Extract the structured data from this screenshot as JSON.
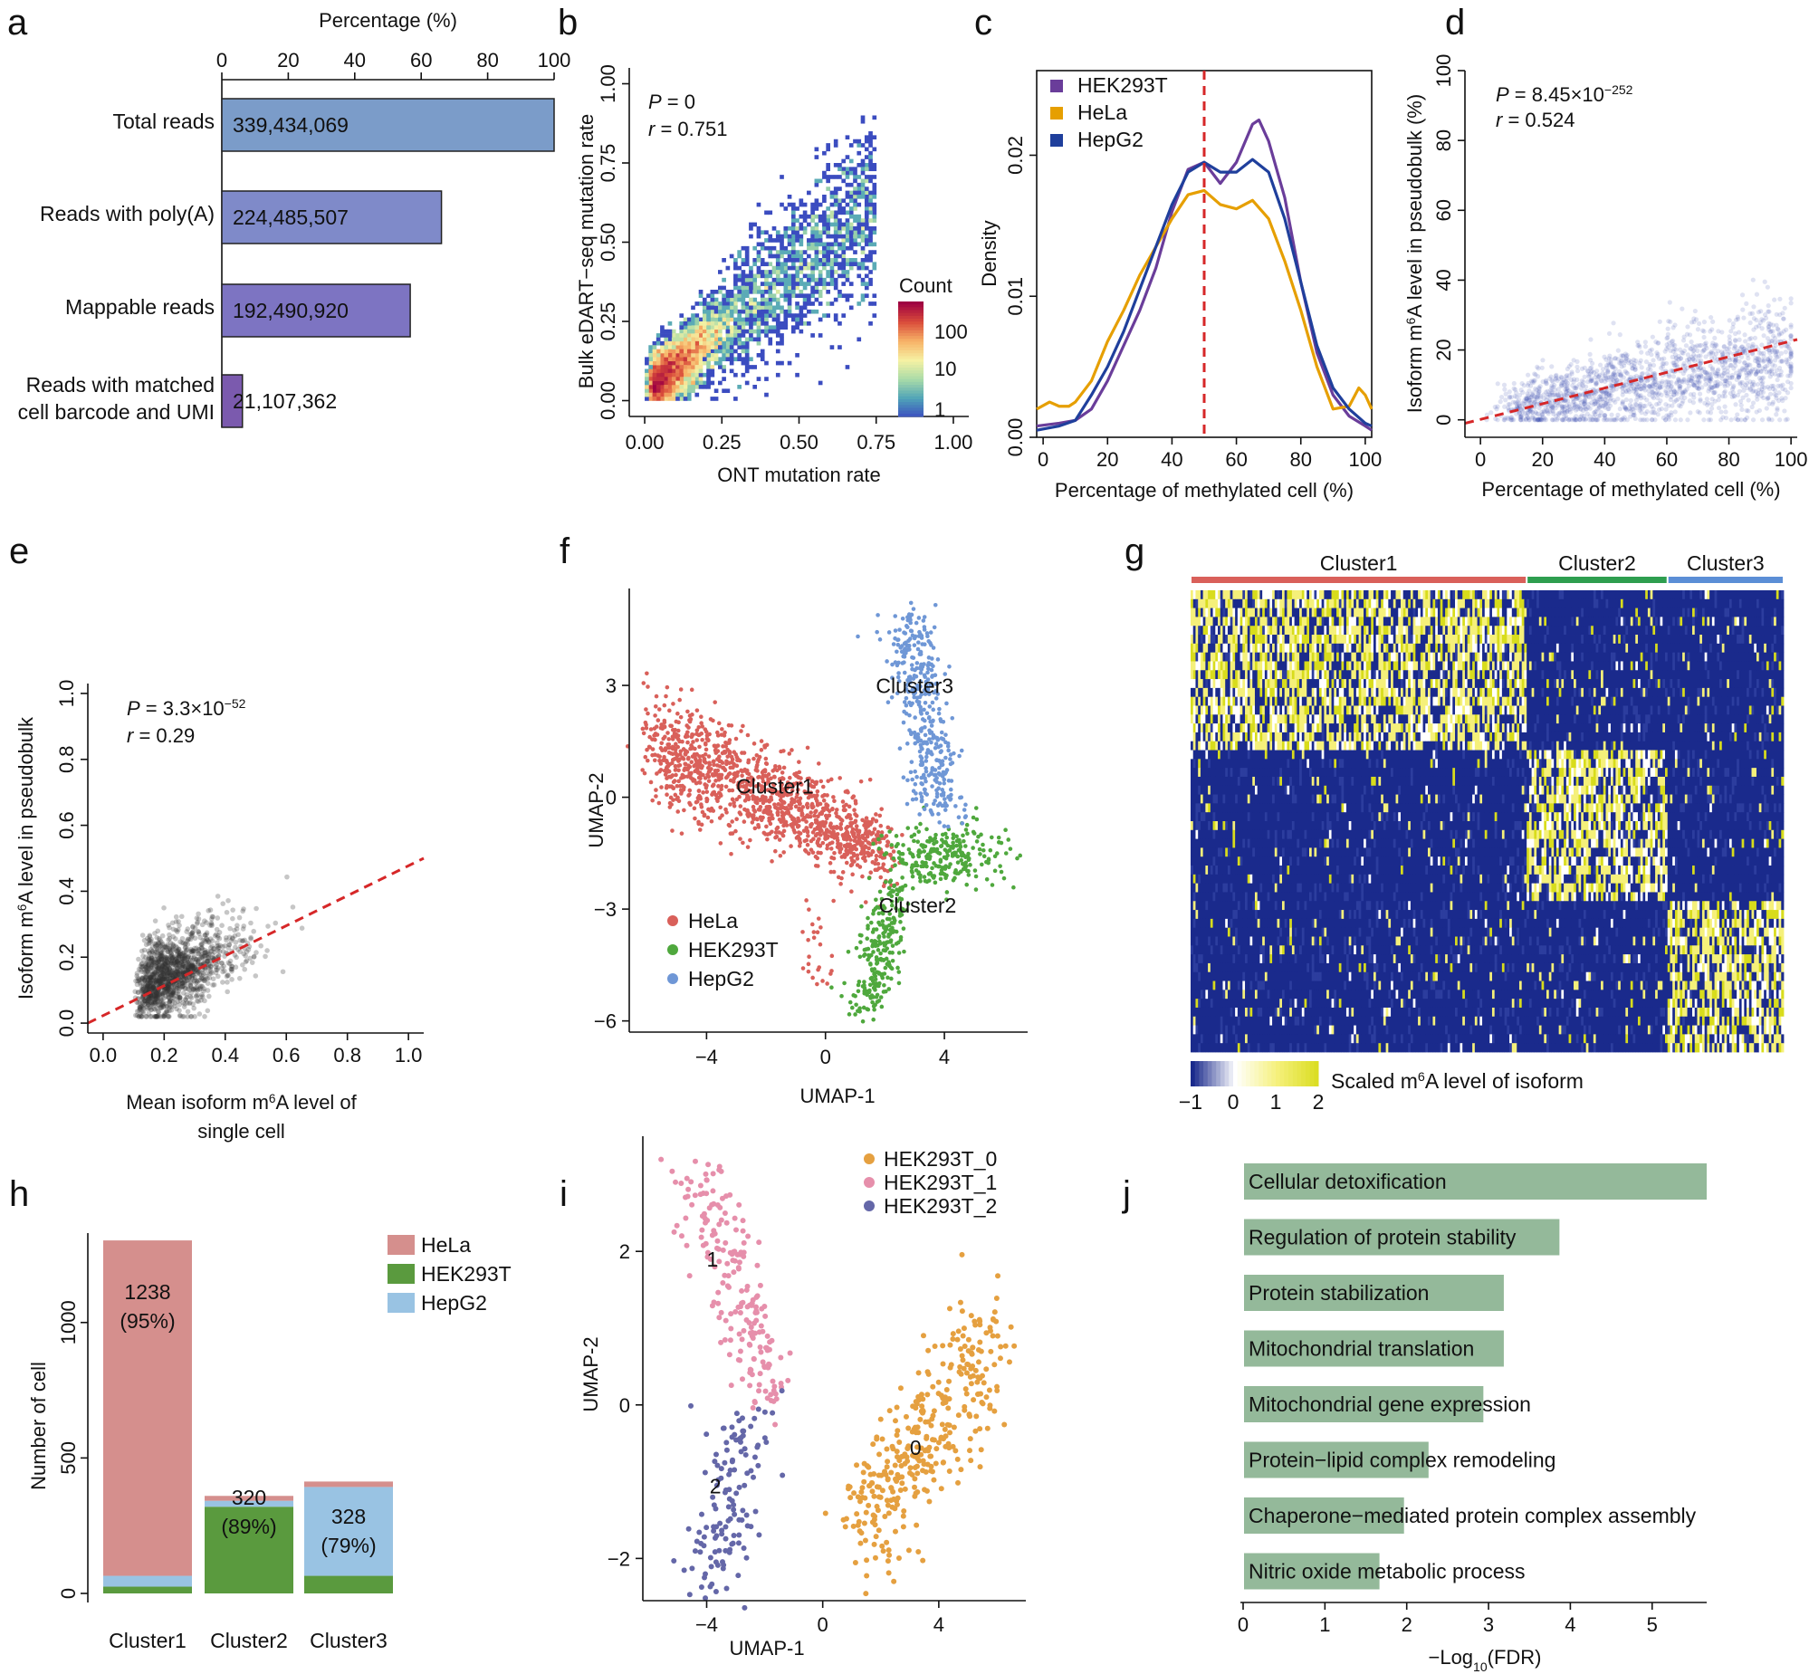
{
  "panel_labels": [
    "a",
    "b",
    "c",
    "d",
    "e",
    "f",
    "g",
    "h",
    "i",
    "j"
  ],
  "chart_data": [
    {
      "panel": "a",
      "type": "bar",
      "orientation": "horizontal",
      "title": "Percentage (%)",
      "xticks": [
        "0",
        "20",
        "40",
        "60",
        "80",
        "100"
      ],
      "xlim": [
        0,
        100
      ],
      "categories": [
        "Total reads",
        "Reads with poly(A)",
        "Mappable reads",
        "Reads with matched cell barcode and UMI"
      ],
      "category_lines": [
        [
          "Total reads"
        ],
        [
          "Reads with poly(A)"
        ],
        [
          "Mappable reads"
        ],
        [
          "Reads with matched",
          "cell barcode and UMI"
        ]
      ],
      "values": [
        100,
        66.1,
        56.7,
        6.2
      ],
      "labels": [
        "339,434,069",
        "224,485,507",
        "192,490,920",
        "21,107,362"
      ],
      "colors": [
        "#7b9cc9",
        "#7f8ac9",
        "#7d74c2",
        "#7b5aae"
      ]
    },
    {
      "panel": "b",
      "type": "heatmap",
      "subtype": "2d-density",
      "xlabel": "ONT mutation rate",
      "ylabel": "Bulk eDART−seq mutation rate",
      "xticks": [
        "0.00",
        "0.25",
        "0.50",
        "0.75",
        "1.00"
      ],
      "yticks": [
        "0.00",
        "0.25",
        "0.50",
        "0.75",
        "1.00"
      ],
      "xlim": [
        0,
        1
      ],
      "ylim": [
        0,
        1
      ],
      "stat_p": "0",
      "stat_r": "0.751",
      "legend_title": "Count",
      "legend_ticks": [
        "100",
        "10",
        "1"
      ],
      "colormap": [
        "#3b4cc0",
        "#4fa3b8",
        "#a9dba8",
        "#f6f1a3",
        "#f7b267",
        "#d94b3a",
        "#9e0142"
      ]
    },
    {
      "panel": "c",
      "type": "line",
      "subtype": "density",
      "xlabel": "Percentage of methylated cell (%)",
      "ylabel": "Density",
      "xticks": [
        "0",
        "20",
        "40",
        "60",
        "80",
        "100"
      ],
      "yticks": [
        "0.00",
        "0.01",
        "0.02"
      ],
      "xlim": [
        -2,
        102
      ],
      "ylim": [
        0,
        0.026
      ],
      "vline": 50,
      "vline_color": "#d62728",
      "series": [
        {
          "name": "HEK293T",
          "color": "#6a3d9a",
          "x": [
            -2,
            5,
            10,
            15,
            20,
            25,
            30,
            35,
            40,
            45,
            50,
            55,
            60,
            65,
            67,
            70,
            75,
            80,
            85,
            90,
            95,
            100,
            102
          ],
          "y": [
            0.0008,
            0.001,
            0.0012,
            0.002,
            0.004,
            0.0065,
            0.009,
            0.012,
            0.016,
            0.019,
            0.0195,
            0.018,
            0.0195,
            0.0222,
            0.0225,
            0.021,
            0.017,
            0.011,
            0.006,
            0.003,
            0.0015,
            0.0008,
            0.0005
          ]
        },
        {
          "name": "HeLa",
          "color": "#e69f00",
          "x": [
            -2,
            2,
            5,
            8,
            10,
            15,
            20,
            25,
            30,
            35,
            40,
            45,
            50,
            55,
            60,
            65,
            70,
            75,
            80,
            85,
            90,
            95,
            98,
            100,
            102
          ],
          "y": [
            0.002,
            0.0025,
            0.0022,
            0.0022,
            0.0025,
            0.004,
            0.0068,
            0.009,
            0.0115,
            0.0135,
            0.0155,
            0.0172,
            0.0175,
            0.0165,
            0.0162,
            0.0168,
            0.0155,
            0.0125,
            0.009,
            0.005,
            0.002,
            0.0022,
            0.0035,
            0.003,
            0.002
          ]
        },
        {
          "name": "HepG2",
          "color": "#1f3f9c",
          "x": [
            -2,
            5,
            10,
            15,
            20,
            25,
            30,
            35,
            40,
            45,
            50,
            55,
            60,
            65,
            70,
            75,
            80,
            85,
            90,
            95,
            100,
            102
          ],
          "y": [
            0.0005,
            0.0008,
            0.0012,
            0.003,
            0.005,
            0.0075,
            0.0105,
            0.0135,
            0.0165,
            0.0188,
            0.0195,
            0.0188,
            0.0188,
            0.0197,
            0.0188,
            0.0155,
            0.011,
            0.0065,
            0.0035,
            0.002,
            0.001,
            0.0008
          ]
        }
      ]
    },
    {
      "panel": "d",
      "type": "scatter",
      "xlabel": "Percentage of methylated cell (%)",
      "ylabel": "Isoform m⁶A level in pseudobulk (%)",
      "ylabel_parts": [
        "Isoform m",
        "6",
        "A level in pseudobulk (%)"
      ],
      "xticks": [
        "0",
        "20",
        "40",
        "60",
        "80",
        "100"
      ],
      "yticks": [
        "0",
        "20",
        "40",
        "60",
        "80",
        "100"
      ],
      "xlim": [
        -5,
        102
      ],
      "ylim": [
        -5,
        100
      ],
      "stat_p_base": "8.45×10",
      "stat_p_exp": "−252",
      "stat_r": "0.524",
      "fit": {
        "x": [
          -5,
          102
        ],
        "y": [
          -1,
          23
        ]
      },
      "point_color": "#3a4cb1"
    },
    {
      "panel": "e",
      "type": "scatter",
      "xlabel_parts": [
        "Mean isoform m",
        "6",
        "A level of"
      ],
      "xlabel_line2": "single cell",
      "ylabel_parts": [
        "Isoform m",
        "6",
        "A level in pseudobulk"
      ],
      "xticks": [
        "0.0",
        "0.2",
        "0.4",
        "0.6",
        "0.8",
        "1.0"
      ],
      "yticks": [
        "0.0",
        "0.2",
        "0.4",
        "0.6",
        "0.8",
        "1.0"
      ],
      "xlim": [
        -0.05,
        1.05
      ],
      "ylim": [
        -0.03,
        1.03
      ],
      "stat_p_base": "3.3×10",
      "stat_p_exp": "−52",
      "stat_r": "0.29",
      "fit": {
        "x": [
          -0.05,
          1.05
        ],
        "y": [
          0.0,
          0.5
        ]
      },
      "point_color": "#333333"
    },
    {
      "panel": "f",
      "type": "scatter",
      "subtype": "umap",
      "xlabel": "UMAP-1",
      "ylabel": "UMAP-2",
      "xticks": [
        "−4",
        "0",
        "4"
      ],
      "xtick_values": [
        -4,
        0,
        4
      ],
      "yticks": [
        "3",
        "0",
        "−3",
        "−6"
      ],
      "ytick_values": [
        3,
        0,
        -3,
        -6
      ],
      "xlim": [
        -6.6,
        6.8
      ],
      "ylim": [
        -6.3,
        5.6
      ],
      "legend": [
        {
          "name": "HeLa",
          "color": "#d9605a"
        },
        {
          "name": "HEK293T",
          "color": "#4fa83d"
        },
        {
          "name": "HepG2",
          "color": "#6f97d6"
        }
      ],
      "clusters": [
        {
          "label": "Cluster1",
          "x": -1.7,
          "y": 0.1
        },
        {
          "label": "Cluster2",
          "x": 3.1,
          "y": -3.1
        },
        {
          "label": "Cluster3",
          "x": 3.0,
          "y": 2.8
        }
      ]
    },
    {
      "panel": "g",
      "type": "heatmap",
      "column_groups": [
        {
          "name": "Cluster1",
          "color": "#d9605a",
          "fraction": 0.565
        },
        {
          "name": "Cluster2",
          "color": "#2e9e4f",
          "fraction": 0.24
        },
        {
          "name": "Cluster3",
          "color": "#5b8ed6",
          "fraction": 0.195
        }
      ],
      "row_blocks": [
        0.34,
        0.33,
        0.33
      ],
      "legend_title_parts": [
        "Scaled m",
        "6",
        "A level of isoform"
      ],
      "legend_ticks": [
        "−1",
        "0",
        "1",
        "2"
      ],
      "colormap": [
        "#1a2a8c",
        "#ffffff",
        "#f5f07a",
        "#d8dc1c"
      ]
    },
    {
      "panel": "h",
      "type": "bar",
      "subtype": "stacked",
      "ylabel": "Number of cell",
      "yticks": [
        "0",
        "500",
        "1000"
      ],
      "ytick_values": [
        0,
        500,
        1000
      ],
      "ylim": [
        0,
        1330
      ],
      "categories": [
        "Cluster1",
        "Cluster2",
        "Cluster3"
      ],
      "series": [
        {
          "name": "HEK293T",
          "color": "#5a9a3e",
          "values": [
            25,
            320,
            65
          ]
        },
        {
          "name": "HepG2",
          "color": "#99c3e3",
          "values": [
            40,
            22,
            328
          ]
        },
        {
          "name": "HeLa",
          "color": "#d58f8d",
          "values": [
            1238,
            18,
            20
          ]
        }
      ],
      "legend": [
        {
          "name": "HeLa",
          "color": "#d58f8d"
        },
        {
          "name": "HEK293T",
          "color": "#5a9a3e"
        },
        {
          "name": "HepG2",
          "color": "#99c3e3"
        }
      ],
      "annotations": [
        {
          "category": "Cluster1",
          "count": "1238",
          "pct": "(95%)"
        },
        {
          "category": "Cluster2",
          "count": "320",
          "pct": "(89%)"
        },
        {
          "category": "Cluster3",
          "count": "328",
          "pct": "(79%)"
        }
      ]
    },
    {
      "panel": "i",
      "type": "scatter",
      "subtype": "umap",
      "xlabel": "UMAP-1",
      "ylabel": "UMAP-2",
      "xticks": [
        "−4",
        "0",
        "4"
      ],
      "xtick_values": [
        -4,
        0,
        4
      ],
      "yticks": [
        "2",
        "0",
        "−2"
      ],
      "ytick_values": [
        2,
        0,
        -2
      ],
      "xlim": [
        -6.2,
        7.0
      ],
      "ylim": [
        -2.55,
        3.5
      ],
      "legend": [
        {
          "name": "HEK293T_0",
          "color": "#e5a040"
        },
        {
          "name": "HEK293T_1",
          "color": "#e68fab"
        },
        {
          "name": "HEK293T_2",
          "color": "#6467a8"
        }
      ],
      "clusters": [
        {
          "label": "1",
          "x": -3.8,
          "y": 1.8
        },
        {
          "label": "2",
          "x": -3.7,
          "y": -1.15
        },
        {
          "label": "0",
          "x": 3.2,
          "y": -0.65
        }
      ]
    },
    {
      "panel": "j",
      "type": "bar",
      "orientation": "horizontal",
      "xlabel_base": "−Log",
      "xlabel_sub": "10",
      "xlabel_tail": "(FDR)",
      "xticks": [
        "0",
        "1",
        "2",
        "3",
        "4",
        "5"
      ],
      "xtick_values": [
        0,
        1,
        2,
        3,
        4,
        5
      ],
      "xlim": [
        0,
        5.7
      ],
      "color": "#94b99a",
      "categories": [
        "Cellular detoxification",
        "Regulation of protein stability",
        "Protein stabilization",
        "Mitochondrial translation",
        "Mitochondrial gene expression",
        "Protein−lipid complex remodeling",
        "Chaperone−mediated protein complex assembly",
        "Nitric oxide metabolic process"
      ],
      "values": [
        5.7,
        3.9,
        3.22,
        3.22,
        2.97,
        2.3,
        2.0,
        1.7
      ]
    }
  ]
}
